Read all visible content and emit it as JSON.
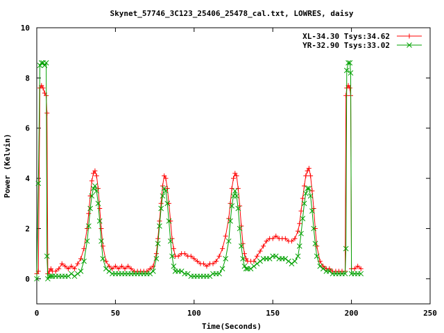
{
  "chart_data": {
    "type": "line",
    "title": "Skynet_57746_3C123_25406_25478_cal.txt, LOWRES, daisy",
    "xlabel": "Time(Seconds)",
    "ylabel": "Power (Kelvin)",
    "xlim": [
      0,
      250
    ],
    "ylim": [
      -1,
      10
    ],
    "xticks": [
      "0",
      "50",
      "100",
      "150",
      "200",
      "250"
    ],
    "yticks": [
      "0",
      "2",
      "4",
      "6",
      "8",
      "10"
    ],
    "legend_position": "top-right",
    "grid": false,
    "series": [
      {
        "name": "XL-34.30 Tsys:34.62",
        "color": "#ff0000",
        "marker": "plus",
        "x": [
          0,
          1,
          2,
          3,
          4,
          5,
          6,
          6.5,
          7,
          8,
          9,
          10,
          12,
          14,
          16,
          18,
          20,
          22,
          24,
          26,
          28,
          30,
          32,
          33,
          34,
          35,
          36,
          37,
          38,
          39,
          40,
          41,
          42,
          44,
          46,
          48,
          50,
          52,
          54,
          56,
          58,
          60,
          62,
          64,
          66,
          68,
          70,
          72,
          74,
          76,
          77,
          78,
          79,
          80,
          81,
          82,
          83,
          84,
          85,
          86,
          87,
          88,
          90,
          92,
          94,
          96,
          98,
          100,
          102,
          104,
          106,
          108,
          110,
          112,
          114,
          116,
          118,
          120,
          122,
          123,
          124,
          125,
          126,
          127,
          128,
          129,
          130,
          131,
          132,
          133,
          134,
          136,
          138,
          140,
          142,
          144,
          146,
          148,
          150,
          152,
          154,
          156,
          158,
          160,
          162,
          164,
          166,
          167,
          168,
          169,
          170,
          171,
          172,
          173,
          174,
          175,
          176,
          177,
          178,
          180,
          182,
          184,
          186,
          188,
          190,
          192,
          194,
          196,
          196.5,
          197,
          198,
          199,
          199.5,
          200,
          202,
          204,
          206
        ],
        "y": [
          0.2,
          0.3,
          7.6,
          7.7,
          7.6,
          7.4,
          7.3,
          6.6,
          0.2,
          0.3,
          0.4,
          0.3,
          0.3,
          0.4,
          0.6,
          0.5,
          0.4,
          0.5,
          0.4,
          0.6,
          0.8,
          1.2,
          2.0,
          2.6,
          3.3,
          3.9,
          4.2,
          4.3,
          4.1,
          3.6,
          2.8,
          2.0,
          1.3,
          0.7,
          0.5,
          0.4,
          0.5,
          0.4,
          0.5,
          0.4,
          0.5,
          0.4,
          0.3,
          0.3,
          0.3,
          0.3,
          0.3,
          0.4,
          0.5,
          1.0,
          1.6,
          2.3,
          3.0,
          3.7,
          4.1,
          4.0,
          3.6,
          3.0,
          2.3,
          1.6,
          1.2,
          0.9,
          0.9,
          1.0,
          1.0,
          0.9,
          0.9,
          0.8,
          0.7,
          0.6,
          0.6,
          0.5,
          0.6,
          0.6,
          0.7,
          0.9,
          1.2,
          1.7,
          2.4,
          3.0,
          3.6,
          4.0,
          4.2,
          4.1,
          3.6,
          2.9,
          2.1,
          1.4,
          1.0,
          0.8,
          0.7,
          0.7,
          0.7,
          0.9,
          1.1,
          1.3,
          1.5,
          1.6,
          1.6,
          1.7,
          1.6,
          1.6,
          1.6,
          1.5,
          1.5,
          1.6,
          1.9,
          2.2,
          2.7,
          3.2,
          3.7,
          4.1,
          4.3,
          4.4,
          4.1,
          3.5,
          2.8,
          2.0,
          1.3,
          0.7,
          0.5,
          0.4,
          0.4,
          0.3,
          0.3,
          0.3,
          0.3,
          0.3,
          7.3,
          7.6,
          7.7,
          7.6,
          7.3,
          0.4,
          0.4,
          0.5,
          0.4
        ]
      },
      {
        "name": "YR-32.90 Tsys:33.02",
        "color": "#00a000",
        "marker": "x",
        "x": [
          0,
          1,
          2,
          3,
          4,
          5,
          6,
          6.5,
          7,
          8,
          9,
          10,
          12,
          14,
          16,
          18,
          20,
          22,
          24,
          26,
          28,
          30,
          32,
          33,
          34,
          35,
          36,
          37,
          38,
          39,
          40,
          41,
          42,
          44,
          46,
          48,
          50,
          52,
          54,
          56,
          58,
          60,
          62,
          64,
          66,
          68,
          70,
          72,
          74,
          76,
          77,
          78,
          79,
          80,
          81,
          82,
          83,
          84,
          85,
          86,
          87,
          88,
          90,
          92,
          94,
          96,
          98,
          100,
          102,
          104,
          106,
          108,
          110,
          112,
          114,
          116,
          118,
          120,
          122,
          123,
          124,
          125,
          126,
          127,
          128,
          129,
          130,
          131,
          132,
          133,
          134,
          136,
          138,
          140,
          142,
          144,
          146,
          148,
          150,
          152,
          154,
          156,
          158,
          160,
          162,
          164,
          166,
          167,
          168,
          169,
          170,
          171,
          172,
          173,
          174,
          175,
          176,
          177,
          178,
          180,
          182,
          184,
          186,
          188,
          190,
          192,
          194,
          196,
          196.5,
          197,
          198,
          199,
          199.5,
          200,
          202,
          204,
          206
        ],
        "y": [
          0.0,
          3.8,
          8.5,
          8.6,
          8.6,
          8.5,
          8.6,
          0.9,
          0.0,
          0.1,
          0.1,
          0.1,
          0.1,
          0.1,
          0.1,
          0.1,
          0.1,
          0.2,
          0.1,
          0.2,
          0.3,
          0.7,
          1.5,
          2.1,
          2.8,
          3.3,
          3.6,
          3.7,
          3.5,
          3.0,
          2.3,
          1.5,
          0.8,
          0.4,
          0.3,
          0.2,
          0.2,
          0.2,
          0.2,
          0.2,
          0.2,
          0.2,
          0.2,
          0.2,
          0.2,
          0.2,
          0.2,
          0.2,
          0.3,
          0.8,
          1.4,
          2.1,
          2.8,
          3.3,
          3.6,
          3.5,
          3.0,
          2.3,
          1.5,
          0.9,
          0.5,
          0.3,
          0.3,
          0.3,
          0.2,
          0.2,
          0.1,
          0.1,
          0.1,
          0.1,
          0.1,
          0.1,
          0.1,
          0.2,
          0.2,
          0.2,
          0.4,
          0.8,
          1.5,
          2.3,
          2.9,
          3.3,
          3.5,
          3.3,
          2.8,
          2.0,
          1.3,
          0.8,
          0.5,
          0.4,
          0.4,
          0.4,
          0.5,
          0.6,
          0.7,
          0.8,
          0.8,
          0.8,
          0.9,
          0.9,
          0.8,
          0.8,
          0.8,
          0.7,
          0.6,
          0.7,
          0.9,
          1.3,
          1.8,
          2.4,
          3.0,
          3.4,
          3.6,
          3.6,
          3.3,
          2.7,
          2.0,
          1.4,
          0.9,
          0.5,
          0.4,
          0.3,
          0.3,
          0.2,
          0.2,
          0.2,
          0.2,
          0.2,
          1.2,
          8.3,
          8.6,
          8.6,
          8.2,
          0.2,
          0.2,
          0.2,
          0.2
        ]
      }
    ]
  }
}
